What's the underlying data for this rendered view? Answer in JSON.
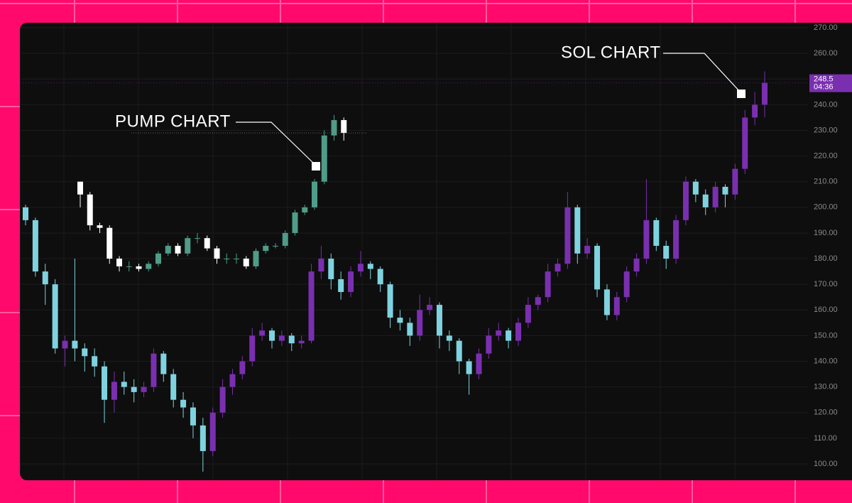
{
  "chart_data": {
    "type": "candlestick",
    "ylim": [
      100,
      270
    ],
    "yticks": [
      {
        "value": 270,
        "label": "270.00"
      },
      {
        "value": 260,
        "label": "260.00"
      },
      {
        "value": 250,
        "label": "250.00"
      },
      {
        "value": 240,
        "label": "240.00"
      },
      {
        "value": 230,
        "label": "230.00"
      },
      {
        "value": 220,
        "label": "220.00"
      },
      {
        "value": 210,
        "label": "210.00"
      },
      {
        "value": 200,
        "label": "200.00"
      },
      {
        "value": 190,
        "label": "190.00"
      },
      {
        "value": 180,
        "label": "180.00"
      },
      {
        "value": 170,
        "label": "170.00"
      },
      {
        "value": 160,
        "label": "160.00"
      },
      {
        "value": 150,
        "label": "150.00"
      },
      {
        "value": 140,
        "label": "140.00"
      },
      {
        "value": 130,
        "label": "130.00"
      },
      {
        "value": 120,
        "label": "120.00"
      },
      {
        "value": 110,
        "label": "110.00"
      },
      {
        "value": 100,
        "label": "100.00"
      }
    ],
    "grid": true,
    "last_price": 248.5,
    "countdown": "04:36",
    "series": [
      {
        "name": "SOL CHART",
        "up_color": "#7a2fb0",
        "down_color": "#7fd3e0",
        "candles": [
          [
            200,
            201,
            193,
            195
          ],
          [
            195,
            196,
            173,
            175
          ],
          [
            175,
            178,
            162,
            170
          ],
          [
            170,
            172,
            143,
            145
          ],
          [
            145,
            150,
            138,
            148
          ],
          [
            148,
            180,
            140,
            145
          ],
          [
            145,
            147,
            136,
            142
          ],
          [
            142,
            145,
            134,
            138
          ],
          [
            138,
            140,
            116,
            125
          ],
          [
            125,
            136,
            120,
            132
          ],
          [
            132,
            136,
            127,
            130
          ],
          [
            130,
            133,
            124,
            128
          ],
          [
            128,
            132,
            126,
            130
          ],
          [
            130,
            145,
            128,
            143
          ],
          [
            143,
            144,
            132,
            135
          ],
          [
            135,
            137,
            122,
            125
          ],
          [
            125,
            128,
            118,
            122
          ],
          [
            122,
            124,
            110,
            115
          ],
          [
            115,
            118,
            97,
            105
          ],
          [
            105,
            122,
            103,
            120
          ],
          [
            120,
            133,
            118,
            130
          ],
          [
            130,
            137,
            127,
            135
          ],
          [
            135,
            142,
            133,
            140
          ],
          [
            140,
            153,
            138,
            150
          ],
          [
            150,
            155,
            148,
            152
          ],
          [
            152,
            153,
            145,
            148
          ],
          [
            148,
            152,
            146,
            150
          ],
          [
            150,
            151,
            144,
            147
          ],
          [
            147,
            150,
            145,
            148
          ],
          [
            148,
            178,
            147,
            175
          ],
          [
            175,
            185,
            172,
            180
          ],
          [
            180,
            182,
            168,
            172
          ],
          [
            172,
            175,
            164,
            167
          ],
          [
            167,
            177,
            165,
            175
          ],
          [
            175,
            183,
            173,
            178
          ],
          [
            178,
            179,
            172,
            176
          ],
          [
            176,
            177,
            167,
            170
          ],
          [
            170,
            171,
            153,
            157
          ],
          [
            157,
            160,
            152,
            155
          ],
          [
            155,
            157,
            146,
            150
          ],
          [
            150,
            166,
            148,
            160
          ],
          [
            160,
            165,
            158,
            162
          ],
          [
            162,
            163,
            145,
            150
          ],
          [
            150,
            152,
            144,
            148
          ],
          [
            148,
            149,
            135,
            140
          ],
          [
            140,
            141,
            127,
            135
          ],
          [
            135,
            145,
            133,
            143
          ],
          [
            143,
            153,
            141,
            150
          ],
          [
            150,
            155,
            148,
            152
          ],
          [
            152,
            153,
            145,
            148
          ],
          [
            148,
            157,
            146,
            155
          ],
          [
            155,
            165,
            153,
            162
          ],
          [
            162,
            166,
            160,
            165
          ],
          [
            165,
            178,
            163,
            175
          ],
          [
            175,
            180,
            173,
            178
          ],
          [
            178,
            206,
            176,
            200
          ],
          [
            200,
            201,
            178,
            182
          ],
          [
            182,
            188,
            180,
            185
          ],
          [
            185,
            186,
            165,
            168
          ],
          [
            168,
            170,
            156,
            158
          ],
          [
            158,
            167,
            156,
            165
          ],
          [
            165,
            177,
            163,
            175
          ],
          [
            175,
            182,
            173,
            180
          ],
          [
            180,
            211,
            178,
            195
          ],
          [
            195,
            196,
            183,
            185
          ],
          [
            185,
            187,
            176,
            180
          ],
          [
            180,
            197,
            178,
            195
          ],
          [
            195,
            212,
            193,
            210
          ],
          [
            210,
            211,
            202,
            205
          ],
          [
            205,
            207,
            197,
            200
          ],
          [
            200,
            210,
            198,
            208
          ],
          [
            208,
            209,
            200,
            205
          ],
          [
            205,
            217,
            203,
            215
          ],
          [
            215,
            238,
            213,
            235
          ],
          [
            235,
            245,
            232,
            240
          ],
          [
            240,
            253,
            235,
            248.5
          ]
        ]
      },
      {
        "name": "PUMP CHART",
        "up_color": "#4f9c88",
        "down_color": "#ffffff",
        "candles": [
          [
            210,
            210,
            200,
            205
          ],
          [
            205,
            206,
            191,
            193
          ],
          [
            193,
            194,
            190,
            192
          ],
          [
            192,
            193,
            178,
            180
          ],
          [
            180,
            181,
            175,
            177
          ],
          [
            177,
            179,
            175,
            177
          ],
          [
            177,
            178,
            175,
            176
          ],
          [
            176,
            179,
            175,
            178
          ],
          [
            178,
            183,
            177,
            182
          ],
          [
            182,
            186,
            181,
            185
          ],
          [
            185,
            186,
            181,
            182
          ],
          [
            182,
            189,
            181,
            188
          ],
          [
            188,
            190,
            186,
            188
          ],
          [
            188,
            189,
            183,
            184
          ],
          [
            184,
            185,
            178,
            180
          ],
          [
            180,
            182,
            178,
            180
          ],
          [
            180,
            182,
            178,
            180
          ],
          [
            180,
            181,
            176,
            177
          ],
          [
            177,
            184,
            176,
            183
          ],
          [
            183,
            186,
            182,
            185
          ],
          [
            185,
            186,
            184,
            185
          ],
          [
            185,
            191,
            184,
            190
          ],
          [
            190,
            199,
            189,
            198
          ],
          [
            198,
            201,
            197,
            200
          ],
          [
            200,
            211,
            199,
            210
          ],
          [
            210,
            230,
            209,
            228
          ],
          [
            228,
            236,
            226,
            234
          ],
          [
            234,
            235,
            226,
            229
          ]
        ]
      }
    ]
  }
}
